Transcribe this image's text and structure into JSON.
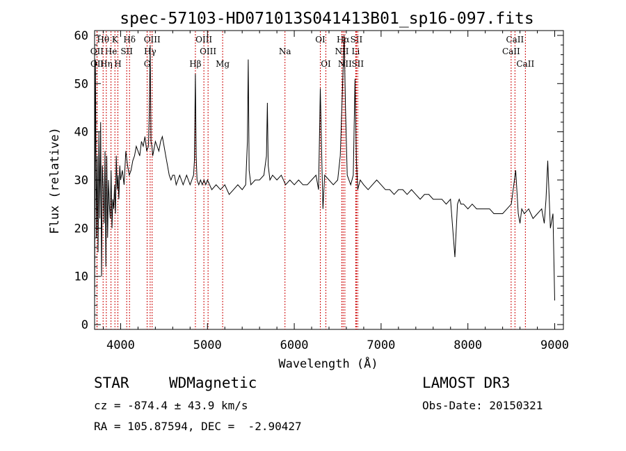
{
  "chart_data": {
    "type": "line",
    "title": "spec-57103-HD071013S041413B01_sp16-097.fits",
    "xlabel": "Wavelength (Å)",
    "ylabel": "Flux (relative)",
    "xlim": [
      3700,
      9100
    ],
    "ylim": [
      -1,
      61
    ],
    "xticks": [
      4000,
      5000,
      6000,
      7000,
      8000,
      9000
    ],
    "yticks": [
      0,
      10,
      20,
      30,
      40,
      50,
      60
    ],
    "grid": false,
    "line_color": "#000000",
    "marker_color": "#cc0000",
    "series": [
      {
        "x": [
          3700,
          3710,
          3720,
          3730,
          3740,
          3750,
          3760,
          3770,
          3780,
          3790,
          3800,
          3810,
          3820,
          3830,
          3840,
          3850,
          3860,
          3870,
          3880,
          3890,
          3900,
          3910,
          3920,
          3930,
          3940,
          3950,
          3960,
          3970,
          3980,
          3990,
          4000,
          4020,
          4040,
          4060,
          4080,
          4100,
          4120,
          4140,
          4160,
          4180,
          4200,
          4220,
          4240,
          4260,
          4280,
          4300,
          4320,
          4330,
          4340,
          4350,
          4360,
          4370,
          4380,
          4400,
          4420,
          4440,
          4460,
          4480,
          4500,
          4520,
          4540,
          4560,
          4580,
          4600,
          4620,
          4640,
          4660,
          4680,
          4700,
          4720,
          4740,
          4760,
          4780,
          4800,
          4820,
          4840,
          4850,
          4861,
          4870,
          4880,
          4900,
          4920,
          4940,
          4960,
          4980,
          5000,
          5050,
          5100,
          5150,
          5200,
          5250,
          5300,
          5350,
          5400,
          5440,
          5460,
          5470,
          5480,
          5500,
          5550,
          5600,
          5650,
          5680,
          5690,
          5700,
          5720,
          5750,
          5800,
          5850,
          5900,
          5950,
          6000,
          6050,
          6100,
          6150,
          6200,
          6250,
          6280,
          6300,
          6320,
          6330,
          6350,
          6400,
          6450,
          6500,
          6530,
          6550,
          6563,
          6575,
          6590,
          6610,
          6630,
          6650,
          6680,
          6700,
          6716,
          6731,
          6745,
          6760,
          6800,
          6850,
          6900,
          6950,
          7000,
          7050,
          7100,
          7150,
          7200,
          7250,
          7300,
          7350,
          7400,
          7450,
          7500,
          7550,
          7600,
          7650,
          7700,
          7750,
          7800,
          7850,
          7880,
          7900,
          7920,
          7950,
          8000,
          8050,
          8100,
          8150,
          8200,
          8250,
          8300,
          8350,
          8400,
          8450,
          8500,
          8550,
          8580,
          8600,
          8620,
          8650,
          8700,
          8750,
          8800,
          8850,
          8880,
          8900,
          8920,
          8950,
          8980,
          9000
        ],
        "y": [
          4,
          55,
          18,
          35,
          15,
          40,
          22,
          42,
          10,
          33,
          28,
          21,
          36,
          12,
          35,
          18,
          30,
          25,
          22,
          32,
          20,
          26,
          24,
          29,
          23,
          35,
          28,
          31,
          26,
          33,
          30,
          32,
          29,
          36,
          33,
          31,
          32,
          34,
          35,
          37,
          36,
          35,
          38,
          37,
          39,
          36,
          37,
          44,
          58,
          38,
          37,
          35,
          36,
          38,
          37,
          36,
          38,
          39,
          37,
          35,
          33,
          31,
          30,
          31,
          31,
          29,
          30,
          31,
          30,
          29,
          30,
          31,
          30,
          29,
          30,
          31,
          34,
          52,
          35,
          30,
          29,
          30,
          29,
          30,
          29,
          30,
          28,
          29,
          28,
          29,
          27,
          28,
          29,
          28,
          29,
          38,
          55,
          32,
          29,
          30,
          30,
          31,
          35,
          46,
          33,
          30,
          31,
          30,
          31,
          29,
          30,
          29,
          30,
          29,
          29,
          30,
          31,
          28,
          49,
          32,
          24,
          31,
          30,
          29,
          30,
          35,
          46,
          53,
          60,
          45,
          31,
          30,
          29,
          31,
          51,
          34,
          28,
          29,
          30,
          29,
          28,
          29,
          30,
          29,
          28,
          28,
          27,
          28,
          28,
          27,
          28,
          27,
          26,
          27,
          27,
          26,
          26,
          26,
          25,
          26,
          14,
          25,
          26,
          25,
          25,
          24,
          25,
          24,
          24,
          24,
          24,
          23,
          23,
          23,
          24,
          25,
          32,
          23,
          21,
          24,
          23,
          24,
          22,
          23,
          24,
          21,
          26,
          34,
          20,
          23,
          5
        ]
      }
    ],
    "lines": [
      {
        "label": "Hθ",
        "wave": 3798,
        "row": 0
      },
      {
        "label": "OII",
        "wave": 3727,
        "row": 1
      },
      {
        "label": "OII",
        "wave": 3729,
        "row": 2
      },
      {
        "label": "K",
        "wave": 3934,
        "row": 0
      },
      {
        "label": "He",
        "wave": 3889,
        "row": 1
      },
      {
        "label": "Hη",
        "wave": 3835,
        "row": 2
      },
      {
        "label": "Hδ",
        "wave": 4102,
        "row": 0
      },
      {
        "label": "SII",
        "wave": 4070,
        "row": 1
      },
      {
        "label": "H",
        "wave": 3968,
        "row": 2
      },
      {
        "label": "OIII",
        "wave": 4363,
        "row": 0
      },
      {
        "label": "Hγ",
        "wave": 4340,
        "row": 1
      },
      {
        "label": "G",
        "wave": 4305,
        "row": 2
      },
      {
        "label": "OIII",
        "wave": 4959,
        "row": 0
      },
      {
        "label": "OIII",
        "wave": 5007,
        "row": 1
      },
      {
        "label": "Hβ",
        "wave": 4861,
        "row": 2
      },
      {
        "label": "Mg",
        "wave": 5175,
        "row": 2
      },
      {
        "label": "Na",
        "wave": 5893,
        "row": 1
      },
      {
        "label": "OI",
        "wave": 6300,
        "row": 0
      },
      {
        "label": "OI",
        "wave": 6364,
        "row": 2
      },
      {
        "label": "Hα",
        "wave": 6563,
        "row": 0
      },
      {
        "label": "SII",
        "wave": 6716,
        "row": 0
      },
      {
        "label": "NII",
        "wave": 6548,
        "row": 1
      },
      {
        "label": "Li",
        "wave": 6708,
        "row": 1
      },
      {
        "label": "NII",
        "wave": 6583,
        "row": 2
      },
      {
        "label": "SII",
        "wave": 6731,
        "row": 2
      },
      {
        "label": "CaII",
        "wave": 8542,
        "row": 0
      },
      {
        "label": "CaII",
        "wave": 8498,
        "row": 1
      },
      {
        "label": "CaII",
        "wave": 8662,
        "row": 2
      }
    ]
  },
  "info": {
    "class": "STAR",
    "subclass": "WDMagnetic",
    "survey": "LAMOST DR3",
    "cz": "cz = -874.4 ± 43.9 km/s",
    "obsdate": "Obs-Date: 20150321",
    "radec": "RA = 105.87594, DEC =  -2.90427"
  }
}
